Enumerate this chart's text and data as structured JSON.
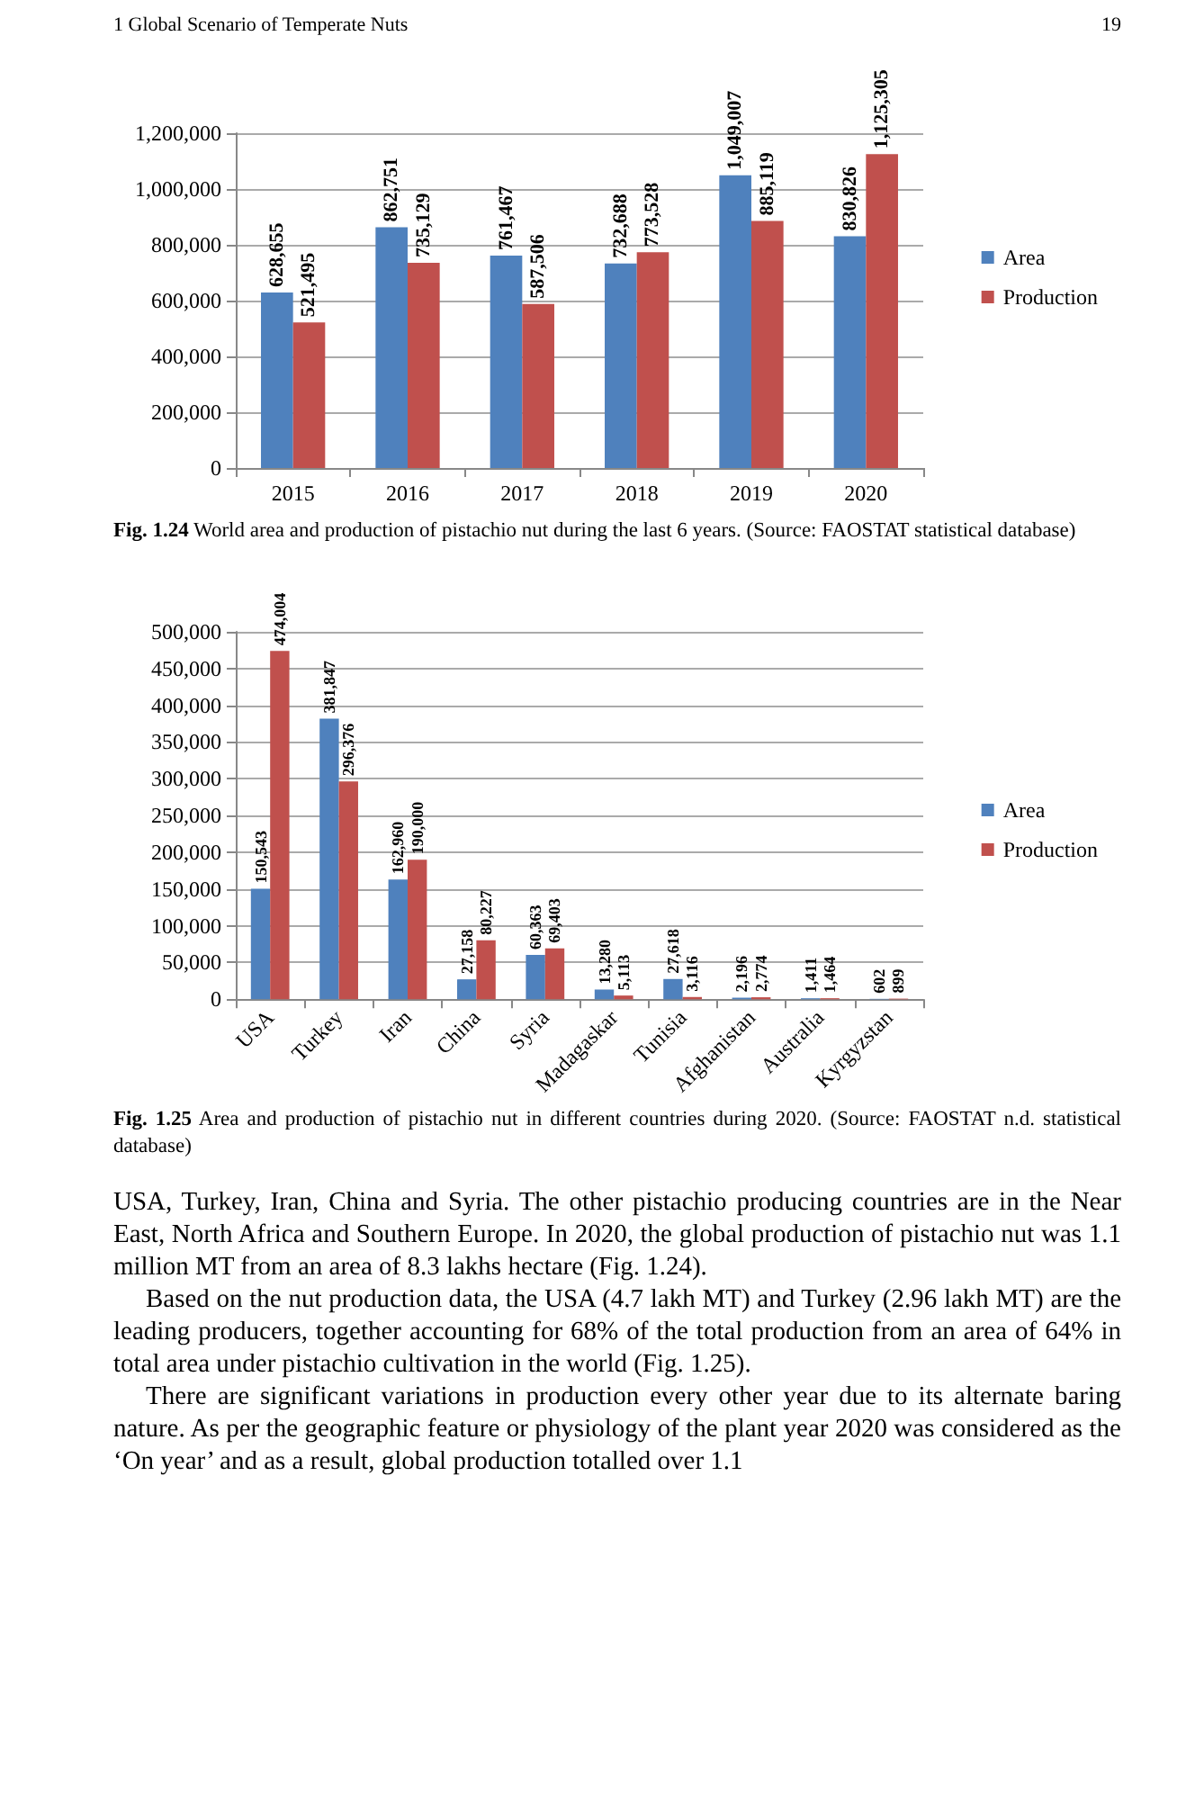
{
  "chart_data": [
    {
      "type": "bar",
      "categories": [
        "2015",
        "2016",
        "2017",
        "2018",
        "2019",
        "2020"
      ],
      "series": [
        {
          "name": "Area",
          "color": "#4f81bd",
          "values": [
            628655,
            862751,
            761467,
            732688,
            1049007,
            830826
          ],
          "value_labels": [
            "628,655",
            "862,751",
            "761,467",
            "732,688",
            "1,049,007",
            "830,826"
          ]
        },
        {
          "name": "Production",
          "color": "#c0504d",
          "values": [
            521495,
            735129,
            587506,
            773528,
            885119,
            1125305
          ],
          "value_labels": [
            "521,495",
            "735,129",
            "587,506",
            "773,528",
            "885,119",
            "1,125,305"
          ]
        }
      ],
      "ylim": [
        0,
        1200000
      ],
      "yticks": [
        0,
        {
          "value": 200000,
          "label": "200,000"
        },
        {
          "value": 400000,
          "label": "400,000"
        },
        {
          "value": 600000,
          "label": "600,000"
        },
        {
          "value": 800000,
          "label": "800,000"
        },
        {
          "value": 1000000,
          "label": "1,000,000"
        },
        {
          "value": 1200000,
          "label": "1,200,000"
        }
      ],
      "grid": "y",
      "legend": "right",
      "annotations": [
        "1 Global Scenario of Temperate Nuts",
        "19",
        "Fig. 1.24 World area and production of pistachio nut during the last 6 years. (Source: FAOSTAT statistical database)"
      ]
    },
    {
      "type": "bar",
      "categories": [
        "USA",
        "Turkey",
        "Iran",
        "China",
        "Syria",
        "Madagaskar",
        "Tunisia",
        "Afghanistan",
        "Australia",
        "Kyrgyzstan"
      ],
      "series": [
        {
          "name": "Area",
          "color": "#4f81bd",
          "values": [
            150543,
            381847,
            162960,
            27158,
            60363,
            13280,
            27618,
            2196,
            1411,
            602
          ],
          "value_labels": [
            "150,543",
            "381,847",
            "162,960",
            "27,158",
            "60,363",
            "13,280",
            "27,618",
            "2,196",
            "1,411",
            "602"
          ]
        },
        {
          "name": "Production",
          "color": "#c0504d",
          "values": [
            474004,
            296376,
            190000,
            80227,
            69403,
            5113,
            3116,
            2774,
            1464,
            899
          ],
          "value_labels": [
            "474,004",
            "296,376",
            "190,000",
            "80,227",
            "69,403",
            "5,113",
            "3,116",
            "2,774",
            "1,464",
            "899"
          ]
        }
      ],
      "ylim": [
        0,
        500000
      ],
      "yticks": [
        0,
        {
          "value": 50000,
          "label": "50,000"
        },
        {
          "value": 100000,
          "label": "100,000"
        },
        {
          "value": 150000,
          "label": "150,000"
        },
        {
          "value": 200000,
          "label": "200,000"
        },
        {
          "value": 250000,
          "label": "250,000"
        },
        {
          "value": 300000,
          "label": "300,000"
        },
        {
          "value": 350000,
          "label": "350,000"
        },
        {
          "value": 400000,
          "label": "400,000"
        },
        {
          "value": 450000,
          "label": "450,000"
        },
        {
          "value": 500000,
          "label": "500,000"
        }
      ],
      "grid": "y",
      "legend": "right",
      "annotations": [
        "Fig. 1.25 Area and production of pistachio nut in different countries during 2020. (Source: FAOSTAT n.d. statistical database)",
        "USA, Turkey, Iran, China and Syria. The other pistachio producing countries are in the Near East, North Africa and Southern Europe. In 2020, the global production of pistachio nut was 1.1 million MT from an area of 8.3 lakhs hectare (Fig. 1.24).",
        "Based on the nut production data, the USA (4.7 lakh MT) and Turkey (2.96 lakh MT) are the leading producers, together accounting for 68% of the total production from an area of 64% in total area under pistachio cultivation in the world (Fig. 1.25).",
        "There are significant variations in production every other year due to its alternate baring nature. As per the geographic feature or physiology of the plant year 2020 was considered as the ‘On year’ and as a result, global production totalled over 1.1"
      ]
    }
  ]
}
